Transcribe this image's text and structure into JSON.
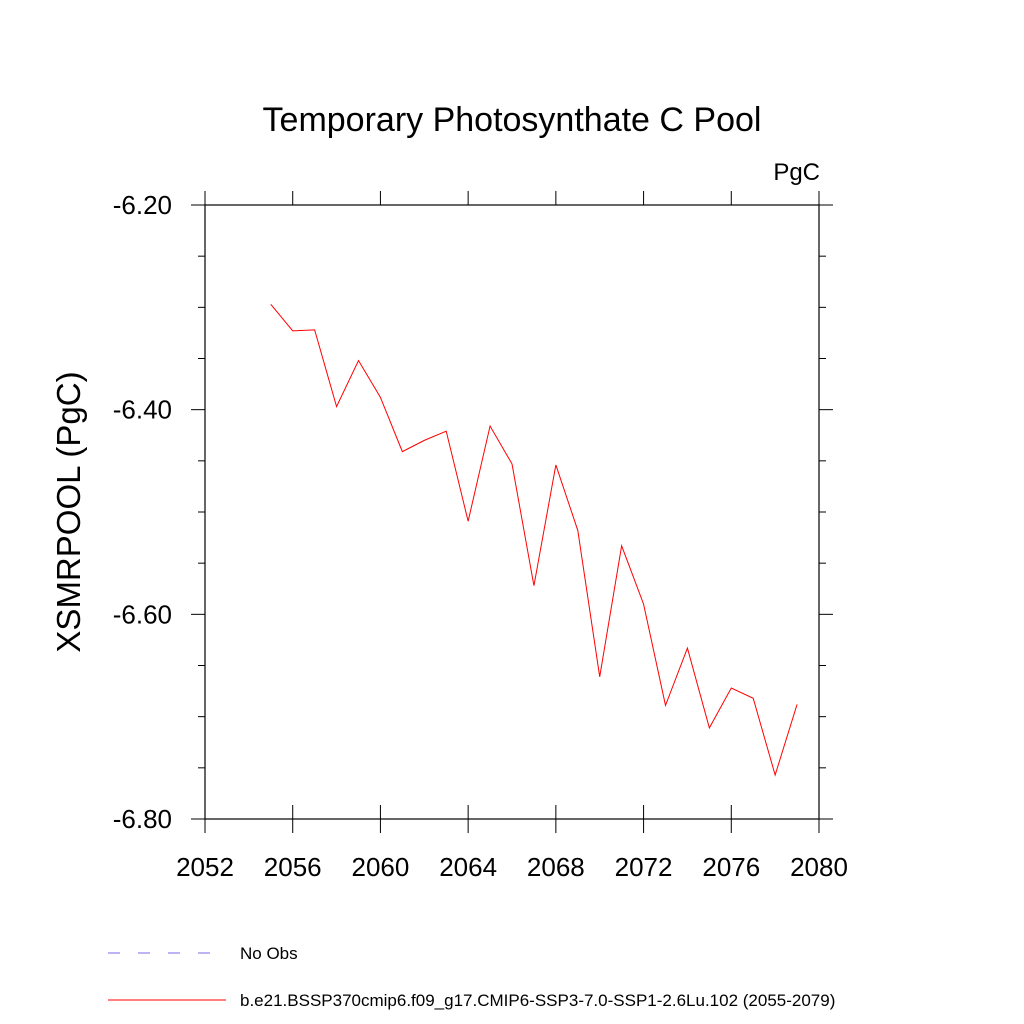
{
  "chart_data": {
    "type": "line",
    "title": "Temporary Photosynthate C Pool",
    "units_label": "PgC",
    "ylabel": "XSMRPOOL  (PgC)",
    "xlabel": "",
    "xlim": [
      2052,
      2080
    ],
    "ylim": [
      -6.8,
      -6.2
    ],
    "x_ticks": [
      2052,
      2056,
      2060,
      2064,
      2068,
      2072,
      2076,
      2080
    ],
    "x_tick_labels": [
      "2052",
      "2056",
      "2060",
      "2064",
      "2068",
      "2072",
      "2076",
      "2080"
    ],
    "y_ticks": [
      -6.2,
      -6.4,
      -6.6,
      -6.8
    ],
    "y_tick_labels": [
      "-6.20",
      "-6.40",
      "-6.60",
      "-6.80"
    ],
    "y_minor_step": 0.05,
    "x_minor_step": 1,
    "grid": false,
    "series": [
      {
        "name": "b.e21.BSSP370cmip6.f09_g17.CMIP6-SSP3-7.0-SSP1-2.6Lu.102 (2055-2079)",
        "color": "#ff0000",
        "x": [
          2055,
          2056,
          2057,
          2058,
          2059,
          2060,
          2061,
          2062,
          2063,
          2064,
          2065,
          2066,
          2067,
          2068,
          2069,
          2070,
          2071,
          2072,
          2073,
          2074,
          2075,
          2076,
          2077,
          2078,
          2079
        ],
        "y": [
          -6.297,
          -6.323,
          -6.322,
          -6.397,
          -6.352,
          -6.388,
          -6.441,
          -6.43,
          -6.421,
          -6.509,
          -6.416,
          -6.453,
          -6.572,
          -6.454,
          -6.518,
          -6.661,
          -6.533,
          -6.59,
          -6.689,
          -6.633,
          -6.711,
          -6.672,
          -6.682,
          -6.757,
          -6.688
        ]
      }
    ],
    "legend": [
      {
        "label": "No Obs",
        "color": "#7b68ee",
        "style": "dashed"
      },
      {
        "label": "b.e21.BSSP370cmip6.f09_g17.CMIP6-SSP3-7.0-SSP1-2.6Lu.102 (2055-2079)",
        "color": "#ff0000",
        "style": "solid"
      }
    ],
    "legend_position": "bottom-left"
  }
}
